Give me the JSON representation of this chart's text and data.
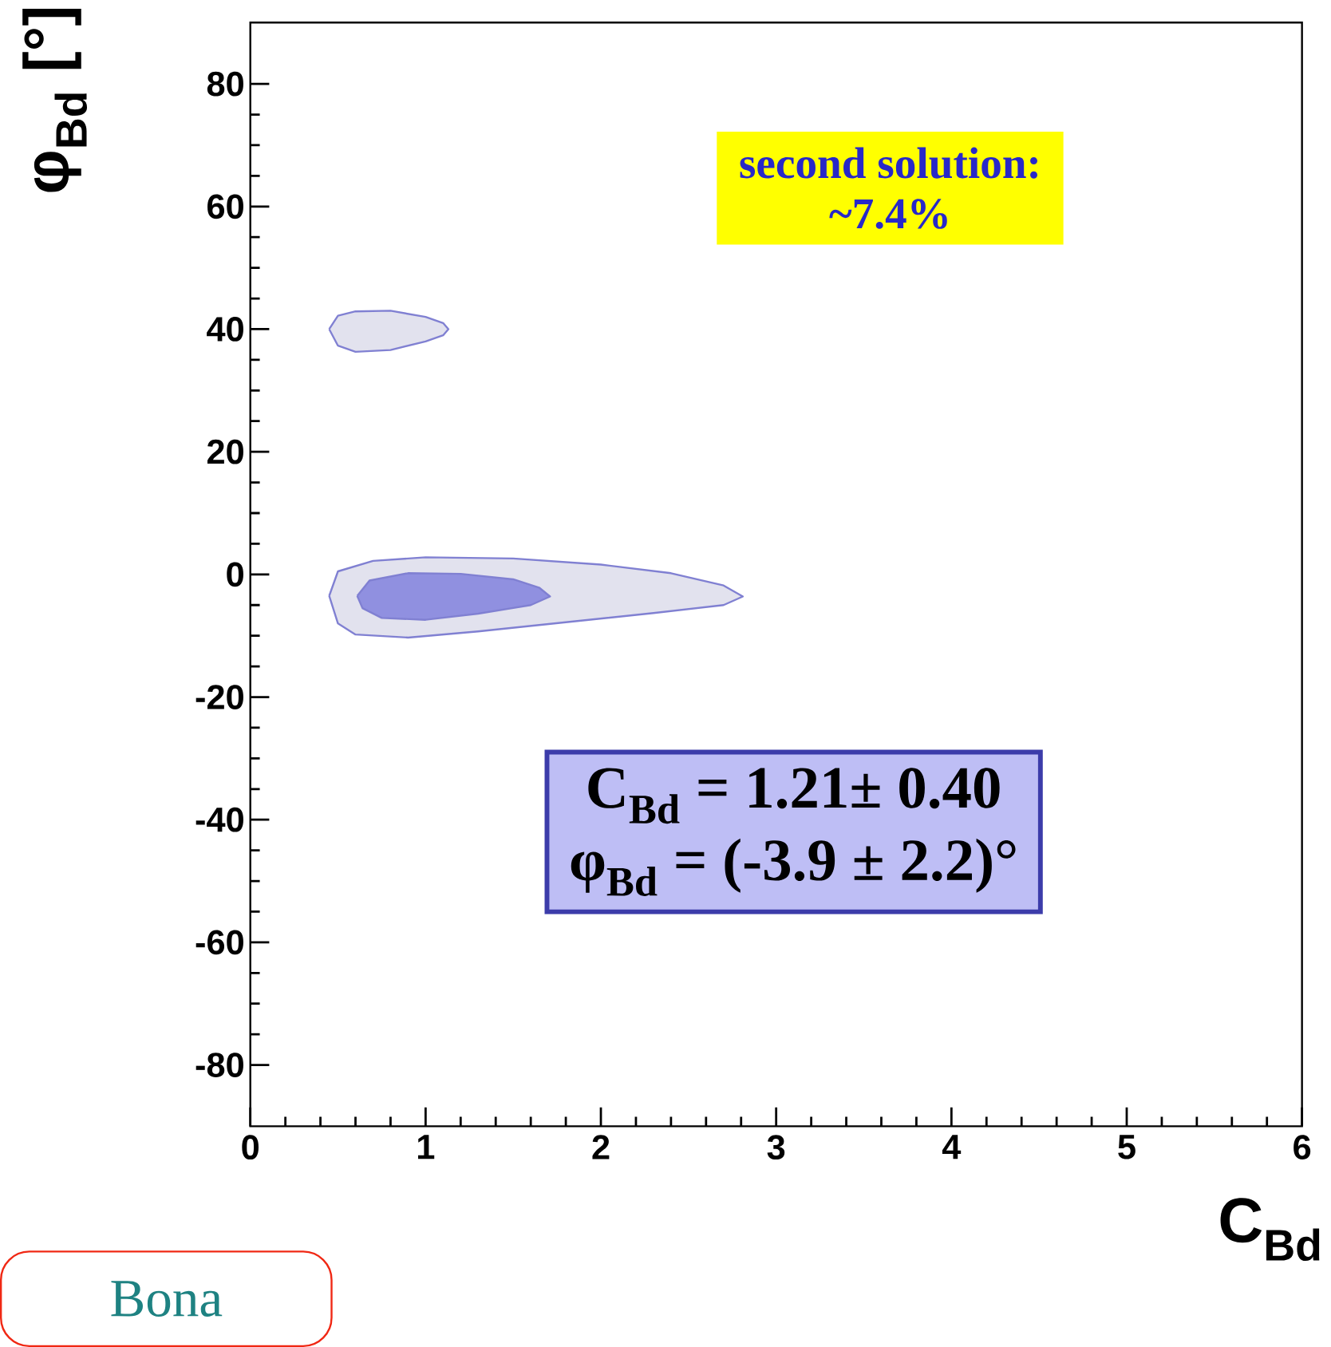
{
  "chart_data": {
    "type": "area",
    "xlabel": "C$_{Bd}$",
    "ylabel": "φ$_{Bd}$ [°]",
    "xlim": [
      0,
      6
    ],
    "ylim": [
      -90,
      90
    ],
    "xticks": [
      0,
      1,
      2,
      3,
      4,
      5,
      6
    ],
    "yticks": [
      -80,
      -60,
      -40,
      -20,
      0,
      20,
      40,
      60,
      80
    ],
    "annotations": [
      "second solution:",
      "~7.4%",
      "C$_{Bd}$ = 1.21± 0.40",
      "φ$_{Bd}$ = (-3.9 ± 2.2)°",
      "Bona"
    ],
    "series": [
      {
        "color": "#e2e2ee",
        "x": [
          0.45,
          0.5,
          0.6,
          0.8,
          1.0,
          1.1,
          1.13,
          1.1,
          1.0,
          0.8,
          0.6,
          0.5,
          0.45
        ],
        "values": [
          40,
          42.2,
          42.9,
          43,
          42,
          41,
          40,
          39,
          38,
          36.6,
          36.3,
          37.3,
          40
        ]
      },
      {
        "color": "#e2e2ee",
        "x": [
          0.45,
          0.5,
          0.7,
          1.0,
          1.5,
          2.0,
          2.4,
          2.7,
          2.81,
          2.7,
          2.3,
          1.8,
          1.3,
          0.9,
          0.6,
          0.5,
          0.45
        ],
        "values": [
          -3.5,
          0.5,
          2.2,
          2.8,
          2.6,
          1.6,
          0.2,
          -1.8,
          -3.6,
          -5,
          -6.3,
          -7.8,
          -9.3,
          -10.3,
          -9.8,
          -8,
          -3.5
        ]
      },
      {
        "color": "#9090e0",
        "x": [
          0.61,
          0.68,
          0.9,
          1.2,
          1.5,
          1.65,
          1.71,
          1.6,
          1.3,
          1.0,
          0.75,
          0.64,
          0.61
        ],
        "values": [
          -3.5,
          -1,
          0.2,
          0.1,
          -0.8,
          -2.2,
          -3.6,
          -5,
          -6.4,
          -7.4,
          -7.1,
          -5.5,
          -3.5
        ]
      }
    ]
  }
}
